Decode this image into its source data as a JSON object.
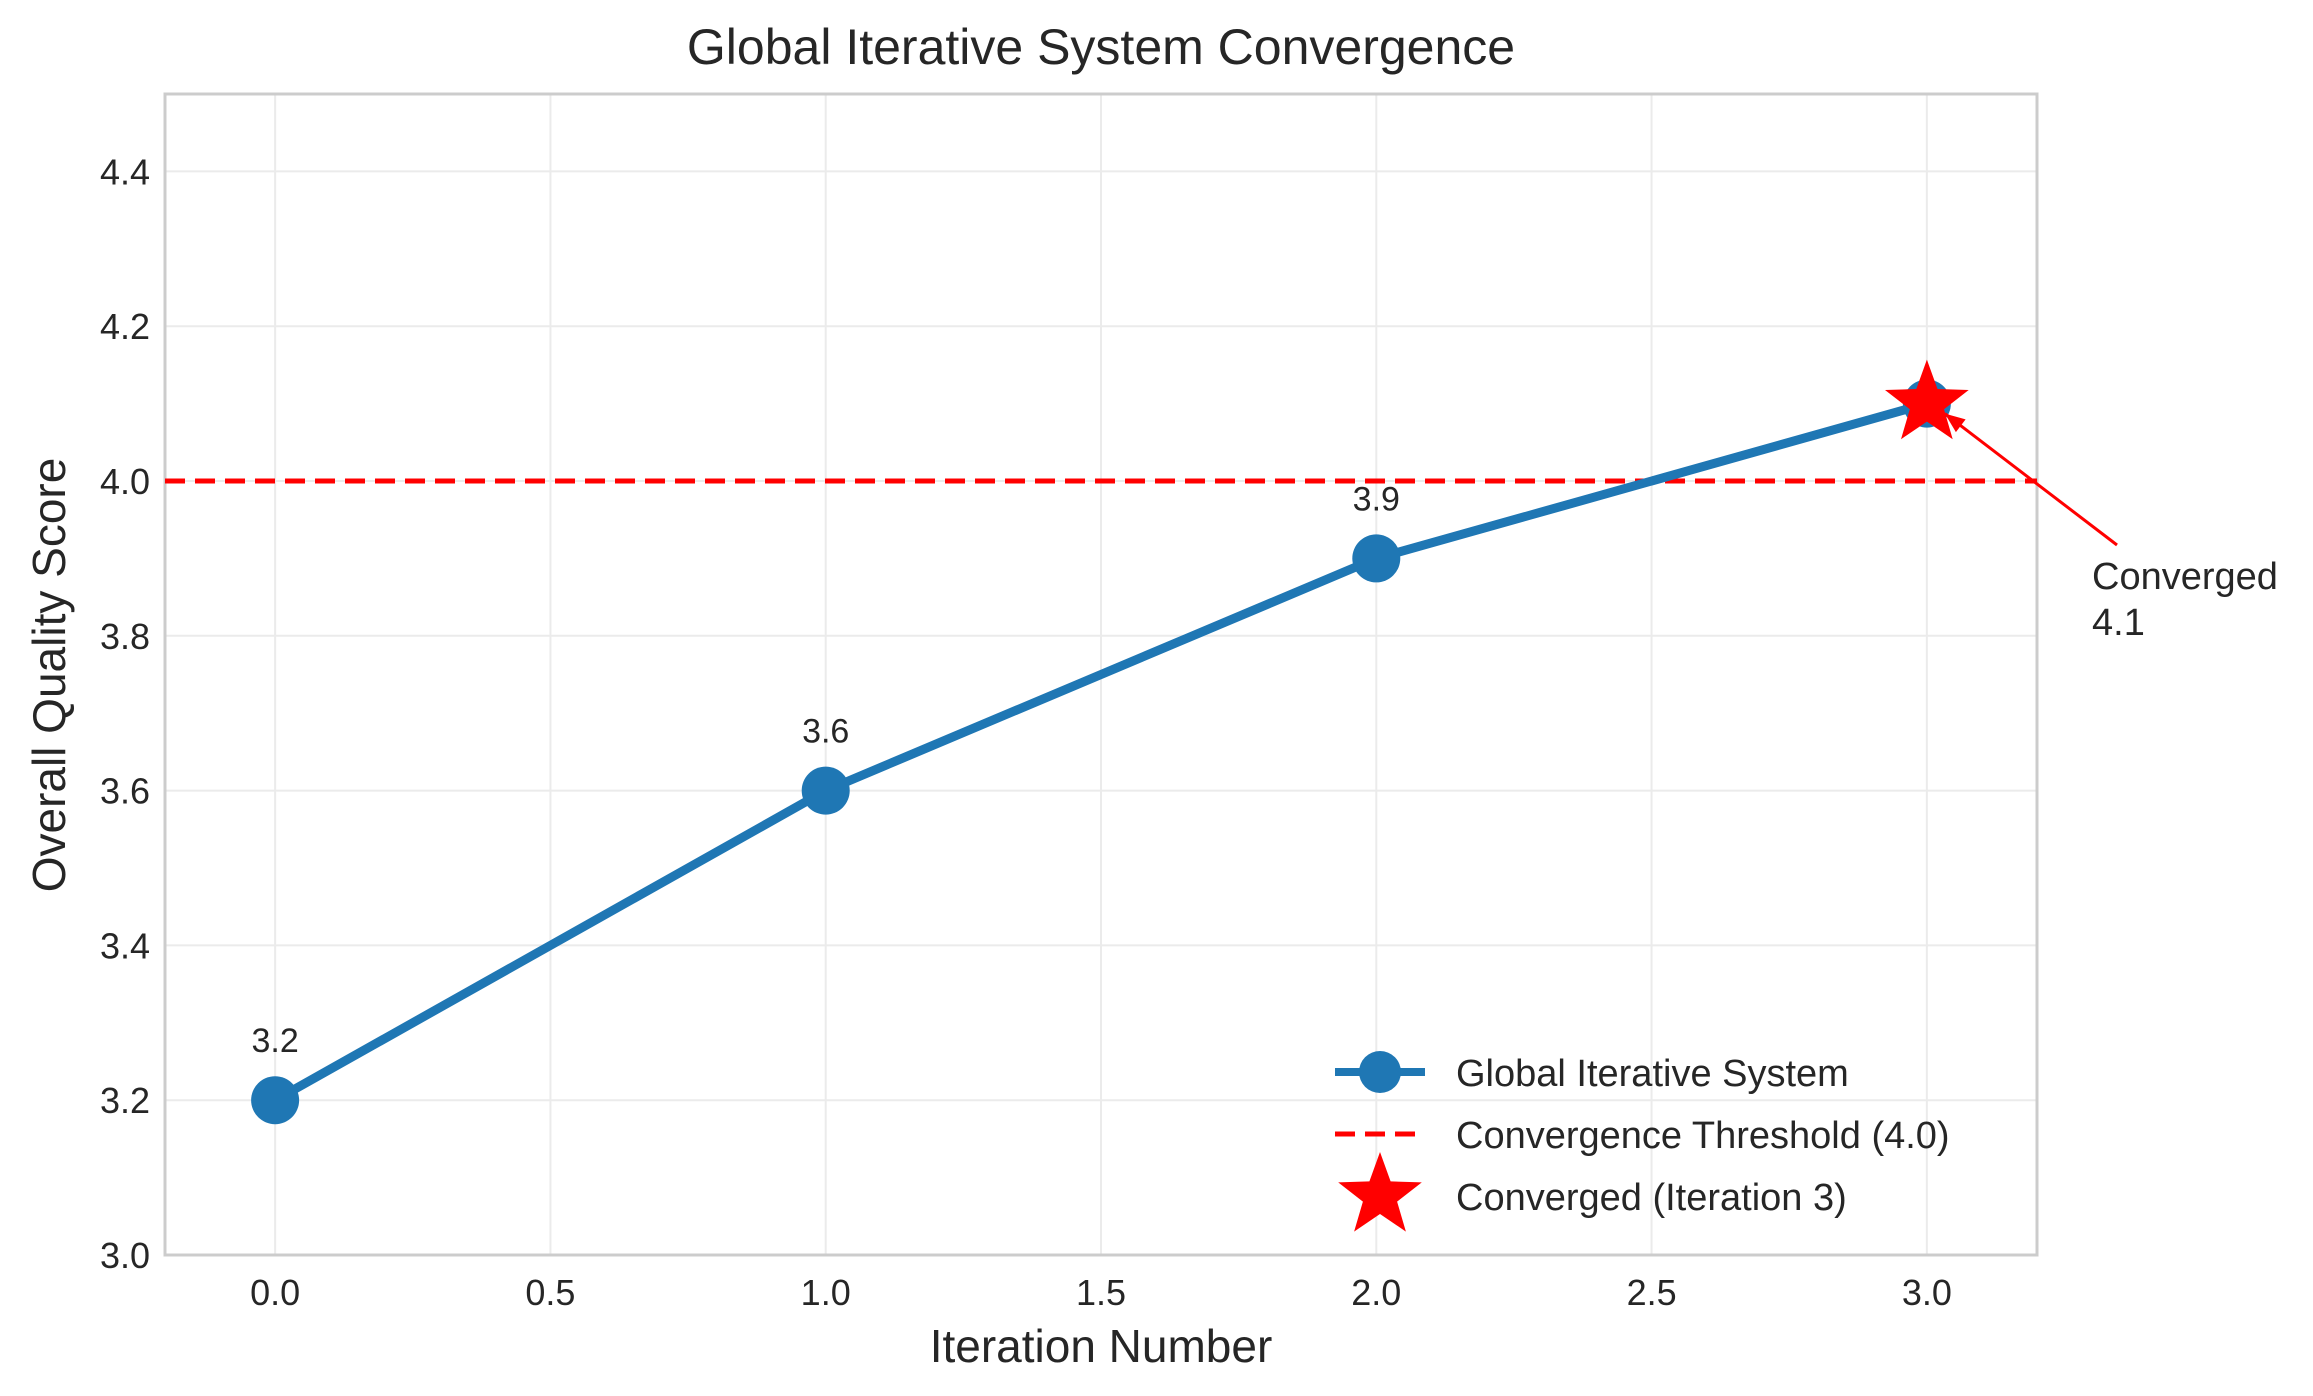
{
  "chart_data": {
    "type": "line",
    "title": "Global Iterative System Convergence",
    "xlabel": "Iteration Number",
    "ylabel": "Overall Quality Score",
    "xlim": [
      -0.2,
      3.2
    ],
    "ylim": [
      3.0,
      4.5
    ],
    "xticks": [
      "0.0",
      "0.5",
      "1.0",
      "1.5",
      "2.0",
      "2.5",
      "3.0"
    ],
    "yticks": [
      "3.0",
      "3.2",
      "3.4",
      "3.6",
      "3.8",
      "4.0",
      "4.2",
      "4.4"
    ],
    "xtick_values": [
      0,
      0.5,
      1,
      1.5,
      2,
      2.5,
      3
    ],
    "ytick_values": [
      3.0,
      3.2,
      3.4,
      3.6,
      3.8,
      4.0,
      4.2,
      4.4
    ],
    "grid": true,
    "legend_position": "lower right",
    "series": [
      {
        "name": "Global Iterative System",
        "x": [
          0,
          1,
          2,
          3
        ],
        "y": [
          3.2,
          3.6,
          3.9,
          4.1
        ],
        "point_labels": [
          "3.2",
          "3.6",
          "3.9",
          ""
        ],
        "color": "#1f77b4"
      }
    ],
    "threshold": {
      "name": "Convergence Threshold (4.0)",
      "y": 4.0,
      "color": "#ff0000"
    },
    "converged_point": {
      "name": "Converged (Iteration 3)",
      "x": 3,
      "y": 4.1,
      "color": "#ff0000",
      "annotation_line1": "Converged",
      "annotation_line2": "4.1"
    }
  }
}
